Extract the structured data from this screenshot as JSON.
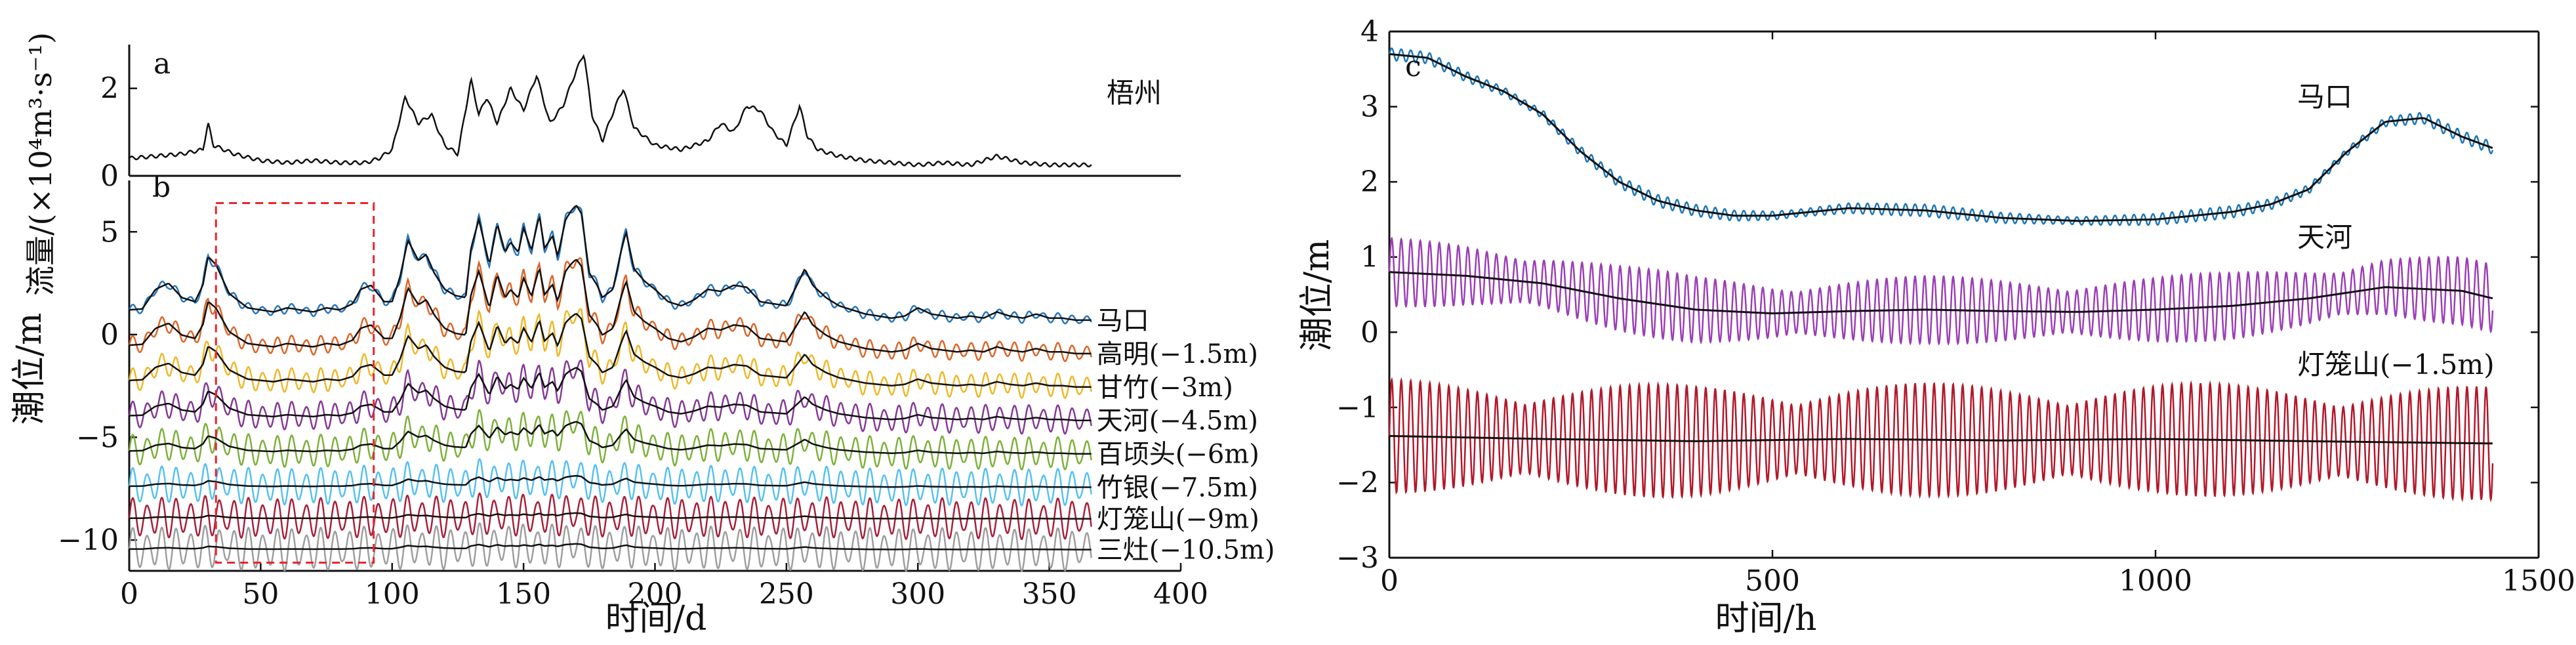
{
  "chart_data": [
    {
      "panel_label": "a",
      "type": "line",
      "ylabel": "流量/(×10⁴m³·s⁻¹)",
      "ylim": [
        0,
        3
      ],
      "yticks": [
        0,
        2
      ],
      "xlim": [
        0,
        400
      ],
      "station": "梧州",
      "series": [
        {
          "name": "梧州",
          "color": "#111111",
          "x": [
            0,
            10,
            20,
            28,
            30,
            32,
            40,
            50,
            60,
            70,
            80,
            90,
            95,
            100,
            105,
            110,
            115,
            120,
            125,
            130,
            133,
            136,
            140,
            145,
            150,
            155,
            160,
            165,
            170,
            173,
            176,
            180,
            185,
            188,
            192,
            200,
            210,
            220,
            225,
            230,
            235,
            240,
            245,
            250,
            255,
            258,
            262,
            270,
            280,
            290,
            300,
            310,
            320,
            330,
            340,
            350,
            360,
            366
          ],
          "y": [
            0.4,
            0.45,
            0.5,
            0.6,
            1.2,
            0.7,
            0.5,
            0.35,
            0.3,
            0.35,
            0.3,
            0.3,
            0.4,
            0.6,
            1.8,
            1.2,
            1.4,
            0.7,
            0.5,
            2.2,
            1.4,
            1.8,
            1.2,
            2.0,
            1.5,
            2.3,
            1.2,
            1.6,
            2.4,
            2.8,
            1.4,
            0.8,
            1.6,
            2.0,
            1.1,
            0.7,
            0.6,
            0.8,
            1.2,
            1.0,
            1.6,
            1.5,
            1.0,
            0.7,
            1.6,
            0.9,
            0.6,
            0.45,
            0.35,
            0.3,
            0.25,
            0.3,
            0.25,
            0.45,
            0.3,
            0.25,
            0.25,
            0.25
          ]
        }
      ]
    },
    {
      "panel_label": "b",
      "type": "line",
      "xlabel": "时间/d",
      "ylabel": "潮位/m",
      "xlim": [
        0,
        400
      ],
      "ylim": [
        -11.5,
        7.5
      ],
      "xticks": [
        0,
        50,
        100,
        150,
        200,
        250,
        300,
        350,
        400
      ],
      "yticks": [
        -10,
        -5,
        0,
        5
      ],
      "highlight_box": {
        "x0": 33,
        "x1": 93,
        "y0": -11.1,
        "y1": 6.4
      },
      "series": [
        {
          "name": "马口",
          "color": "#1f6fb5",
          "offset": 0,
          "tidal_amp": 0.25
        },
        {
          "name": "高明(−1.5m)",
          "color": "#d95f1f",
          "offset": -1.5,
          "tidal_amp": 0.45
        },
        {
          "name": "甘竹(−3m)",
          "color": "#edb41d",
          "offset": -3,
          "tidal_amp": 0.6
        },
        {
          "name": "天河(−4.5m)",
          "color": "#7e2f8e",
          "offset": -4.5,
          "tidal_amp": 0.7
        },
        {
          "name": "百顷头(−6m)",
          "color": "#77ac30",
          "offset": -6,
          "tidal_amp": 0.8
        },
        {
          "name": "竹银(−7.5m)",
          "color": "#4dbeee",
          "offset": -7.5,
          "tidal_amp": 0.9
        },
        {
          "name": "灯笼山(−9m)",
          "color": "#a2142f",
          "offset": -9,
          "tidal_amp": 1.0
        },
        {
          "name": "三灶(−10.5m)",
          "color": "#999999",
          "offset": -10.5,
          "tidal_amp": 1.05
        }
      ],
      "mean_level_maKou": {
        "x": [
          0,
          5,
          10,
          15,
          20,
          25,
          28,
          30,
          33,
          38,
          45,
          50,
          55,
          60,
          65,
          70,
          75,
          80,
          85,
          88,
          92,
          97,
          100,
          103,
          106,
          110,
          113,
          116,
          120,
          124,
          128,
          130,
          133,
          137,
          140,
          143,
          145,
          148,
          150,
          153,
          156,
          158,
          161,
          163,
          166,
          168,
          170,
          172,
          175,
          178,
          180,
          184,
          187,
          189,
          192,
          196,
          200,
          205,
          210,
          215,
          220,
          225,
          230,
          235,
          240,
          245,
          250,
          254,
          257,
          260,
          265,
          270,
          275,
          280,
          285,
          290,
          295,
          300,
          305,
          310,
          315,
          320,
          325,
          330,
          335,
          340,
          345,
          350,
          355,
          360,
          366
        ],
        "y": [
          1.2,
          1.25,
          2.2,
          2.5,
          1.8,
          1.6,
          2.4,
          3.8,
          3.4,
          2.0,
          1.3,
          1.2,
          1.1,
          1.3,
          1.2,
          1.1,
          1.3,
          1.2,
          1.5,
          2.2,
          2.4,
          1.6,
          1.6,
          2.8,
          4.6,
          3.6,
          3.9,
          3.0,
          2.2,
          1.9,
          1.8,
          4.2,
          5.6,
          3.4,
          5.4,
          4.0,
          4.5,
          4.0,
          5.2,
          4.1,
          5.8,
          4.2,
          4.8,
          3.8,
          5.6,
          6.0,
          6.3,
          5.9,
          3.0,
          2.4,
          1.8,
          2.2,
          4.0,
          5.0,
          3.2,
          2.6,
          2.2,
          1.6,
          1.4,
          1.7,
          2.2,
          2.1,
          2.4,
          2.3,
          1.6,
          1.5,
          1.4,
          2.4,
          3.2,
          2.4,
          1.8,
          1.4,
          1.2,
          1.0,
          0.9,
          0.8,
          0.9,
          1.3,
          1.0,
          0.9,
          0.8,
          0.9,
          0.8,
          1.1,
          0.9,
          0.8,
          1.0,
          0.8,
          0.8,
          0.7,
          0.7
        ]
      }
    },
    {
      "panel_label": "c",
      "type": "line",
      "xlabel": "时间/h",
      "ylabel": "潮位/m",
      "xlim": [
        0,
        1500
      ],
      "ylim": [
        -3,
        4
      ],
      "xticks": [
        0,
        500,
        1000,
        1500
      ],
      "yticks": [
        -3,
        -2,
        -1,
        0,
        1,
        2,
        3,
        4
      ],
      "tidal_period_h": 12.42,
      "x_end": 1440,
      "series": [
        {
          "name": "马口",
          "color": "#1f77b4",
          "tidal_amp": 0.08,
          "mean_x": [
            0,
            50,
            100,
            150,
            200,
            250,
            300,
            350,
            400,
            450,
            500,
            600,
            700,
            800,
            900,
            1000,
            1050,
            1100,
            1150,
            1200,
            1250,
            1300,
            1350,
            1400,
            1440
          ],
          "mean_y": [
            3.7,
            3.65,
            3.4,
            3.2,
            2.9,
            2.4,
            2.0,
            1.75,
            1.62,
            1.55,
            1.55,
            1.65,
            1.62,
            1.52,
            1.48,
            1.5,
            1.55,
            1.6,
            1.7,
            1.9,
            2.4,
            2.8,
            2.85,
            2.6,
            2.45
          ]
        },
        {
          "name": "天河",
          "color": "#9b3fb5",
          "tidal_amp": 0.45,
          "mean_x": [
            0,
            100,
            200,
            300,
            400,
            500,
            600,
            700,
            800,
            900,
            1000,
            1100,
            1200,
            1300,
            1400,
            1440
          ],
          "mean_y": [
            0.8,
            0.75,
            0.65,
            0.45,
            0.3,
            0.25,
            0.28,
            0.3,
            0.28,
            0.27,
            0.3,
            0.35,
            0.45,
            0.6,
            0.55,
            0.45
          ]
        },
        {
          "name": "灯笼山(−1.5m)",
          "color": "#b2182b",
          "tidal_amp": 0.75,
          "mean_x": [
            0,
            200,
            400,
            600,
            800,
            1000,
            1200,
            1440
          ],
          "mean_y": [
            -1.38,
            -1.42,
            -1.45,
            -1.42,
            -1.44,
            -1.42,
            -1.45,
            -1.48
          ]
        }
      ]
    }
  ]
}
